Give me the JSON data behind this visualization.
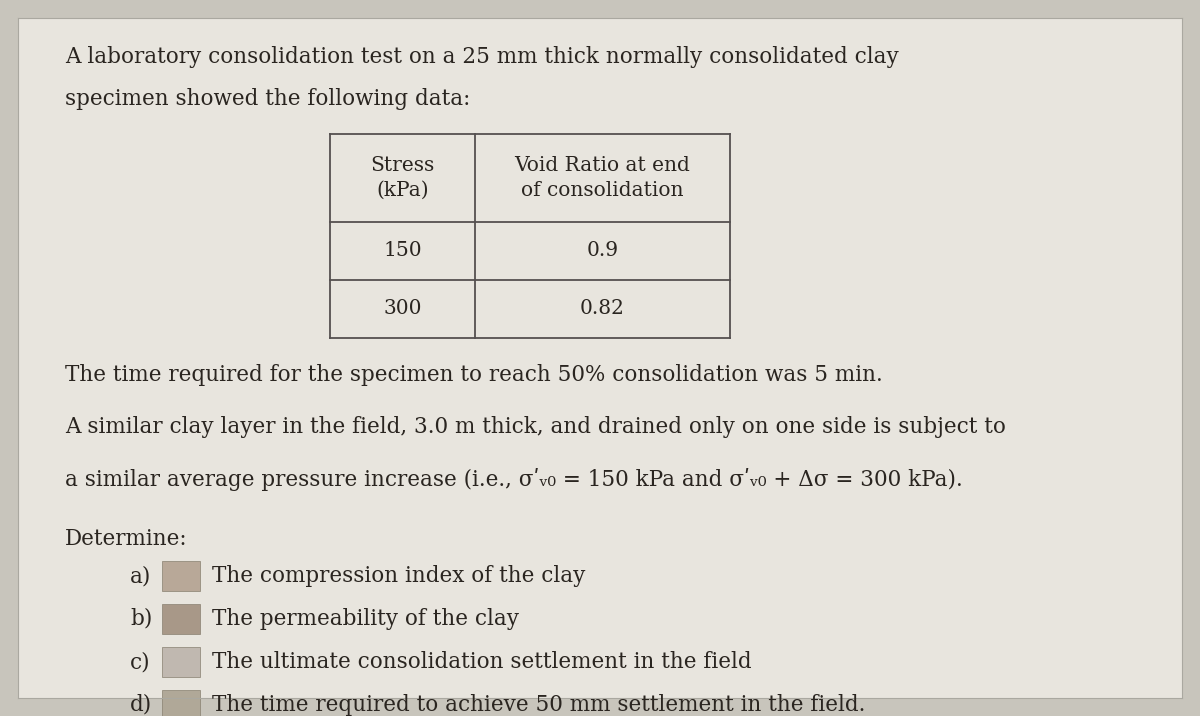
{
  "background_color": "#c8c5bc",
  "content_bg": "#e8e5de",
  "table_bg": "#e8e5de",
  "text_color": "#2a2520",
  "intro_line1": "A laboratory consolidation test on a 25 mm thick normally consolidated clay",
  "intro_line2": "specimen showed the following data:",
  "table_col1_header": "Stress\n(kPa)",
  "table_col2_header": "Void Ratio at end\nof consolidation",
  "table_rows": [
    [
      "150",
      "0.9"
    ],
    [
      "300",
      "0.82"
    ]
  ],
  "para1": "The time required for the specimen to reach 50% consolidation was 5 min.",
  "para2": "A similar clay layer in the field, 3.0 m thick, and drained only on one side is subject to",
  "para3": "a similar average pressure increase (i.e., σʹᵥ₀ = 150 kPa and σʹᵥ₀ + Δσ = 300 kPa).",
  "determine_label": "Determine:",
  "items": [
    [
      "a)",
      "The compression index of the clay"
    ],
    [
      "b)",
      "The permeability of the clay"
    ],
    [
      "c)",
      "The ultimate consolidation settlement in the field"
    ],
    [
      "d)",
      "The time required to achieve 50 mm settlement in the field."
    ]
  ],
  "font_size_body": 15.5,
  "font_size_table": 14.5,
  "font_family": "DejaVu Serif"
}
